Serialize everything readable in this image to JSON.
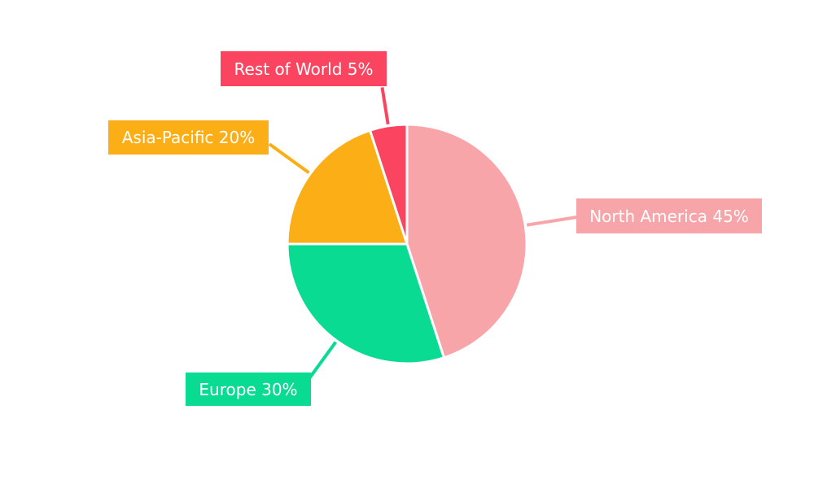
{
  "chart_data": {
    "type": "pie",
    "title": "",
    "categories": [
      "North America",
      "Europe",
      "Asia-Pacific",
      "Rest of World"
    ],
    "values": [
      45,
      30,
      20,
      5
    ],
    "unit": "%",
    "labels": [
      "North America 45%",
      "Europe 30%",
      "Asia-Pacific 20%",
      "Rest of World 5%"
    ],
    "colors": [
      "#F8A5A9",
      "#0ADB92",
      "#FCAE17",
      "#FB4560"
    ],
    "slice_border_color": "#ffffff",
    "background": "#ffffff",
    "start_angle_deg": 0,
    "direction": "clockwise",
    "legend_position": "callout-labels",
    "grid": false
  }
}
